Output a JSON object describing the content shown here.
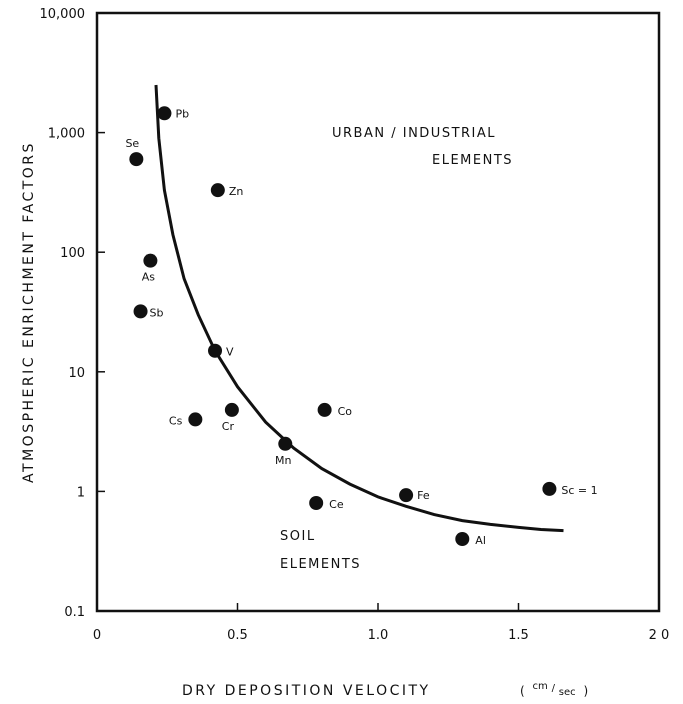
{
  "chart_data": {
    "type": "scatter",
    "xlabel": "DRY DEPOSITION VELOCITY",
    "xunit_prefix": "(",
    "xunit_num": "cm",
    "xunit_den": "sec",
    "xunit_suffix": ")",
    "ylabel": "ATMOSPHERIC ENRICHMENT FACTORS",
    "xlim": [
      0,
      2.0
    ],
    "ylim": [
      0.1,
      10000
    ],
    "yscale": "log",
    "x_ticks": [
      "0",
      "0.5",
      "1.0",
      "1.5",
      "2 0"
    ],
    "y_ticks": [
      "10,000",
      "1,000",
      "100",
      "10",
      "1",
      "0.1"
    ],
    "grid": false,
    "annotations": {
      "urban_line1": "URBAN / INDUSTRIAL",
      "urban_line2": "ELEMENTS",
      "soil_line1": "SOIL",
      "soil_line2": "ELEMENTS"
    },
    "points": [
      {
        "label": "Pb",
        "x": 0.24,
        "y": 1450
      },
      {
        "label": "Se",
        "x": 0.14,
        "y": 600
      },
      {
        "label": "Zn",
        "x": 0.43,
        "y": 330
      },
      {
        "label": "As",
        "x": 0.19,
        "y": 85
      },
      {
        "label": "Sb",
        "x": 0.155,
        "y": 32
      },
      {
        "label": "V",
        "x": 0.42,
        "y": 15
      },
      {
        "label": "Cs",
        "x": 0.35,
        "y": 4.0
      },
      {
        "label": "Cr",
        "x": 0.48,
        "y": 4.8
      },
      {
        "label": "Co",
        "x": 0.81,
        "y": 4.8
      },
      {
        "label": "Mn",
        "x": 0.67,
        "y": 2.5
      },
      {
        "label": "Ce",
        "x": 0.78,
        "y": 0.8
      },
      {
        "label": "Fe",
        "x": 1.1,
        "y": 0.93
      },
      {
        "label": "Al",
        "x": 1.3,
        "y": 0.4
      },
      {
        "label": "Sc = 1",
        "x": 1.61,
        "y": 1.05
      }
    ],
    "fit_curve": {
      "x": [
        0.21,
        0.22,
        0.24,
        0.27,
        0.31,
        0.36,
        0.42,
        0.5,
        0.6,
        0.7,
        0.8,
        0.9,
        1.0,
        1.1,
        1.2,
        1.3,
        1.4,
        1.5,
        1.58,
        1.66
      ],
      "y": [
        2500,
        900,
        330,
        140,
        60,
        30,
        15,
        7.5,
        3.8,
        2.3,
        1.55,
        1.15,
        0.9,
        0.75,
        0.64,
        0.57,
        0.53,
        0.5,
        0.48,
        0.47
      ]
    }
  }
}
